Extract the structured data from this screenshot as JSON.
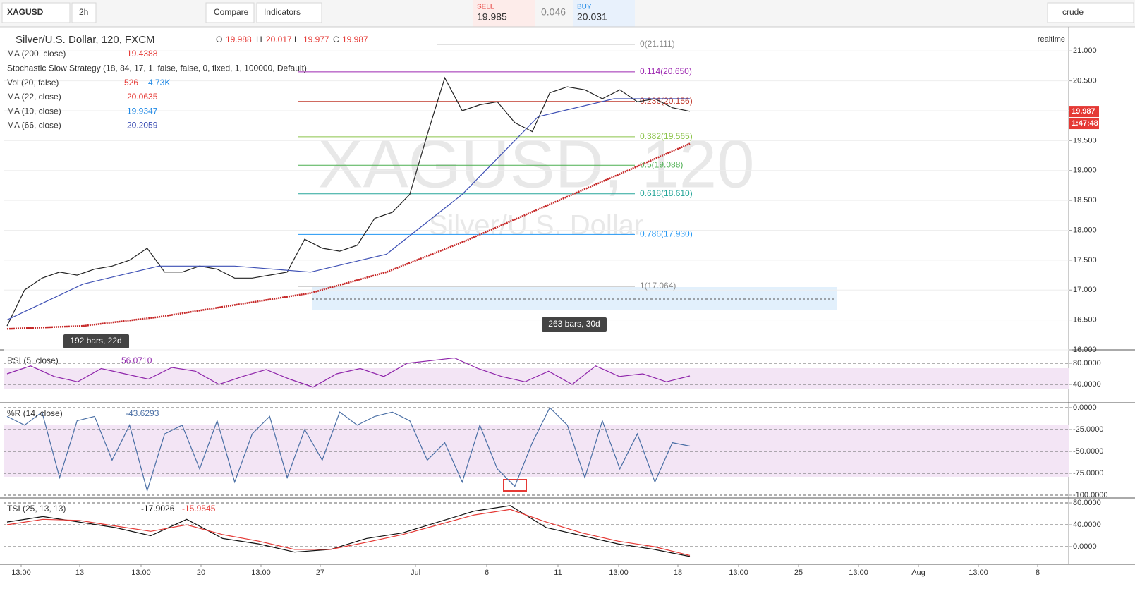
{
  "toolbar": {
    "symbol": "XAGUSD",
    "interval": "2h",
    "compare": "Compare",
    "indicators": "Indicators",
    "sell_label": "SELL",
    "sell": "19.985",
    "spread": "0.046",
    "buy_label": "BUY",
    "buy": "20.031",
    "watchlist": "crude"
  },
  "legend": {
    "title": "Silver/U.S. Dollar, 120, FXCM",
    "ohlc": [
      "O",
      "19.988",
      "H",
      "20.017",
      "L",
      "19.977",
      "C",
      "19.987"
    ],
    "rows": [
      [
        "MA (200, close)",
        "19.4388"
      ],
      [
        "Stochastic Slow Strategy (18, 84, 17, 1, false, false, 0, fixed, 1, 100000, Default)"
      ],
      [
        "Vol (20, false)",
        "526",
        "4.73K"
      ],
      [
        "MA (22, close)",
        "20.0635"
      ],
      [
        "MA (10, close)",
        "19.9347"
      ],
      [
        "MA (66, close)",
        "20.2059"
      ]
    ]
  },
  "realtime": "realtime",
  "watermark": {
    "symbol": "XAGUSD, 120",
    "name": "Silver/U.S. Dollar"
  },
  "measures": [
    "192 bars, 22d",
    "263 bars, 30d"
  ],
  "countdown": "1:47:48",
  "time_axis": [
    "13:00",
    "13",
    "13:00",
    "20",
    "13:00",
    "27",
    "Jul",
    "6",
    "11",
    "13:00",
    "18",
    "13:00",
    "25",
    "13:00",
    "Aug",
    "13:00",
    "8"
  ],
  "chart_data": [
    {
      "type": "line",
      "ylim": [
        16,
        21.38
      ],
      "yticks": [
        {
          "value": 16,
          "label": "16.000"
        },
        {
          "value": 16.5,
          "label": "16.500"
        },
        {
          "value": 17,
          "label": "17.000"
        },
        {
          "value": 17.5,
          "label": "17.500"
        },
        {
          "value": 18,
          "label": "18.000"
        },
        {
          "value": 18.5,
          "label": "18.500"
        },
        {
          "value": 19,
          "label": "19.000"
        },
        {
          "value": 19.5,
          "label": "19.500"
        },
        {
          "value": 20,
          "label": "20.000"
        },
        {
          "value": 20.5,
          "label": "20.500"
        },
        {
          "value": 21,
          "label": "21.000"
        }
      ],
      "last_price": {
        "value": 19.987,
        "label": "19.987"
      },
      "fibonacci": [
        {
          "label": "0(21.111)",
          "price": 21.111,
          "color": "#888888"
        },
        {
          "label": "0.114(20.650)",
          "price": 20.65,
          "color": "#9c27b0"
        },
        {
          "label": "0.236(20.156)",
          "price": 20.156,
          "color": "#c0392b"
        },
        {
          "label": "0.382(19.565)",
          "price": 19.565,
          "color": "#8bc34a"
        },
        {
          "label": "0.5(19.088)",
          "price": 19.088,
          "color": "#4caf50"
        },
        {
          "label": "0.618(18.610)",
          "price": 18.61,
          "color": "#26a69a"
        },
        {
          "label": "0.786(17.930)",
          "price": 17.93,
          "color": "#2196f3"
        },
        {
          "label": "1(17.064)",
          "price": 17.064,
          "color": "#888888"
        }
      ],
      "series": [
        {
          "name": "Price",
          "color": "#222222",
          "values": [
            16.4,
            17.0,
            17.2,
            17.3,
            17.25,
            17.35,
            17.4,
            17.5,
            17.7,
            17.3,
            17.3,
            17.4,
            17.35,
            17.2,
            17.2,
            17.25,
            17.3,
            17.85,
            17.7,
            17.65,
            17.75,
            18.2,
            18.3,
            18.6,
            19.6,
            20.55,
            20.0,
            20.1,
            20.15,
            19.8,
            19.65,
            20.3,
            20.4,
            20.35,
            20.2,
            20.35,
            20.15,
            20.2,
            20.05,
            19.99
          ]
        },
        {
          "name": "MA (66, close)",
          "color": "#3f51b5",
          "values": [
            16.5,
            17.1,
            17.4,
            17.4,
            17.3,
            17.6,
            18.6,
            19.9,
            20.2,
            20.2
          ]
        },
        {
          "name": "MA (200, close)",
          "color": "#c62828",
          "values": [
            16.35,
            16.4,
            16.55,
            16.75,
            16.95,
            17.3,
            17.8,
            18.35,
            18.9,
            19.45
          ]
        }
      ]
    },
    {
      "type": "line",
      "title": "RSI (5, close)",
      "value_label": "56.0710",
      "ylim": [
        6.7,
        102.7
      ],
      "yticks": [
        {
          "value": 80,
          "label": "80.0000"
        },
        {
          "value": 40,
          "label": "40.0000"
        }
      ],
      "series": [
        {
          "name": "RSI",
          "color": "#8e24aa",
          "values": [
            60,
            75,
            55,
            45,
            70,
            60,
            50,
            72,
            65,
            40,
            55,
            68,
            50,
            35,
            60,
            70,
            55,
            80,
            85,
            90,
            70,
            55,
            45,
            65,
            40,
            75,
            55,
            60,
            45,
            56
          ]
        }
      ]
    },
    {
      "type": "line",
      "title": "%R (14, close)",
      "value_label": "-43.6293",
      "ylim": [
        -102.4,
        4
      ],
      "yticks": [
        {
          "value": 0,
          "label": "0.0000"
        },
        {
          "value": -25,
          "label": "-25.0000"
        },
        {
          "value": -50,
          "label": "-50.0000"
        },
        {
          "value": -75,
          "label": "-75.0000"
        },
        {
          "value": -100,
          "label": "-100.0000"
        }
      ],
      "series": [
        {
          "name": "%R",
          "color": "#4a6fa5",
          "values": [
            -10,
            -20,
            -5,
            -80,
            -15,
            -10,
            -60,
            -20,
            -95,
            -30,
            -20,
            -70,
            -15,
            -85,
            -30,
            -10,
            -80,
            -25,
            -60,
            -5,
            -20,
            -10,
            -5,
            -15,
            -60,
            -40,
            -85,
            -20,
            -70,
            -90,
            -40,
            0,
            -20,
            -80,
            -15,
            -70,
            -30,
            -85,
            -40,
            -44
          ]
        }
      ]
    },
    {
      "type": "line",
      "title": "TSI (25, 13, 13)",
      "value_labels": [
        "-17.9026",
        "-15.9545"
      ],
      "ylim": [
        -32.3,
        86.5
      ],
      "yticks": [
        {
          "value": 80,
          "label": "80.0000"
        },
        {
          "value": 40,
          "label": "40.0000"
        },
        {
          "value": 0,
          "label": "0.0000"
        }
      ],
      "series": [
        {
          "name": "TSI",
          "color": "#111111",
          "values": [
            45,
            55,
            45,
            35,
            20,
            50,
            15,
            5,
            -10,
            -5,
            15,
            25,
            45,
            65,
            75,
            35,
            20,
            5,
            -5,
            -18
          ]
        },
        {
          "name": "Signal",
          "color": "#e53935",
          "values": [
            40,
            50,
            48,
            38,
            28,
            40,
            22,
            10,
            -5,
            -5,
            8,
            22,
            40,
            58,
            68,
            45,
            25,
            10,
            0,
            -16
          ]
        }
      ]
    }
  ]
}
